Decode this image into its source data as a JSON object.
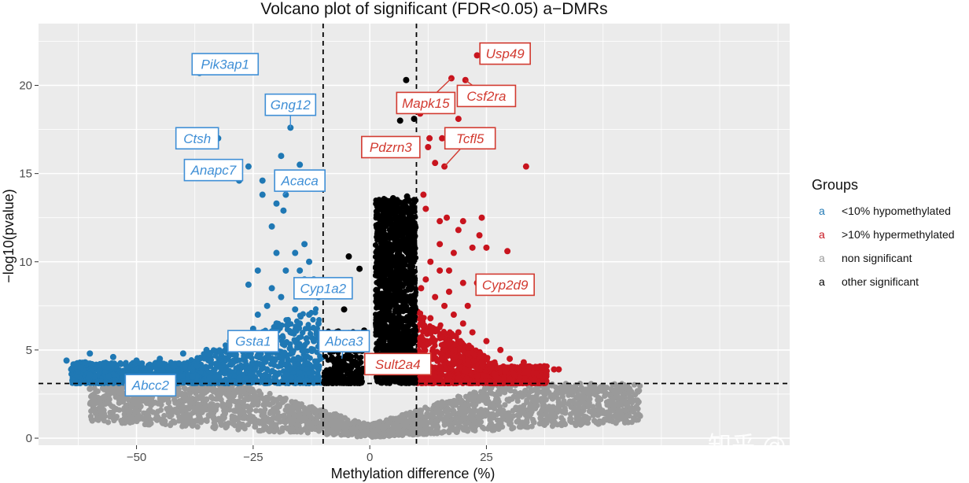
{
  "watermark": "知乎 @易基因科技",
  "chart_data": {
    "type": "scatter",
    "title": "Volcano plot of significant (FDR<0.05) a−DMRs",
    "xlabel": "Methylation difference (%)",
    "ylabel": "−log10(pvalue)",
    "xlim": [
      -71,
      90
    ],
    "ylim": [
      -0.4,
      23.5
    ],
    "x_ticks": [
      -50,
      -25,
      0,
      25
    ],
    "x_tick_labels": [
      "−50",
      "−25",
      "0",
      "25"
    ],
    "y_ticks": [
      0,
      5,
      10,
      15,
      20
    ],
    "y_tick_labels": [
      "0",
      "5",
      "10",
      "15",
      "20"
    ],
    "thresholds": {
      "x": [
        -10,
        10
      ],
      "y": 3.1
    },
    "grid": true,
    "legend": {
      "title": "Groups",
      "placement": "right",
      "entries": [
        {
          "key": "a",
          "label": "<10% hypomethylated",
          "color": "#1f78b4"
        },
        {
          "key": "a",
          "label": ">10% hypermethylated",
          "color": "#c8141e"
        },
        {
          "key": "a",
          "label": "non significant",
          "color": "#9a9a9a"
        },
        {
          "key": "a",
          "label": "other significant",
          "color": "#000000"
        }
      ]
    },
    "colors": {
      "hypo": "#1f78b4",
      "hyper": "#c8141e",
      "ns": "#9a9a9a",
      "other": "#000000",
      "panel": "#ebebeb"
    },
    "series": [
      {
        "name": "non significant",
        "color": "#9a9a9a",
        "points": [
          [
            -60,
            2.8
          ],
          [
            -52,
            3.0
          ],
          [
            -45,
            2.7
          ],
          [
            -40,
            2.4
          ],
          [
            -35,
            2.2
          ],
          [
            -30,
            2.5
          ],
          [
            -25,
            1.9
          ],
          [
            -20,
            1.7
          ],
          [
            -15,
            1.4
          ],
          [
            -10,
            1.0
          ],
          [
            -5,
            0.6
          ],
          [
            0,
            0.2
          ],
          [
            5,
            0.6
          ],
          [
            10,
            1.0
          ],
          [
            15,
            1.3
          ],
          [
            20,
            1.6
          ],
          [
            25,
            2.0
          ],
          [
            30,
            2.2
          ],
          [
            35,
            2.3
          ],
          [
            45,
            1.0
          ],
          [
            49,
            1.9
          ],
          [
            53,
            2.4
          ],
          [
            47,
            2.0
          ],
          [
            40,
            2.6
          ],
          [
            55,
            2.9
          ],
          [
            54,
            2.8
          ],
          [
            43,
            1.1
          ]
        ]
      },
      {
        "name": "other significant",
        "color": "#000000",
        "points": [
          [
            2,
            13.5
          ],
          [
            5,
            13.6
          ],
          [
            8,
            13.7
          ],
          [
            9.5,
            13.5
          ],
          [
            7.8,
            20.3
          ],
          [
            6.5,
            18.0
          ],
          [
            9.5,
            18.1
          ],
          [
            9.0,
            16.1
          ],
          [
            -4.5,
            10.3
          ],
          [
            -2.2,
            9.6
          ],
          [
            -1.2,
            6.1
          ],
          [
            -5.5,
            7.3
          ],
          [
            -8,
            4.5
          ],
          [
            -4,
            4.0
          ],
          [
            1.5,
            4.5
          ],
          [
            3,
            6.5
          ],
          [
            6,
            9.5
          ],
          [
            8,
            8.0
          ]
        ]
      },
      {
        "name": "<10% hypomethylated",
        "color": "#1f78b4",
        "points": [
          [
            -36.5,
            20.7
          ],
          [
            -32.5,
            17.0
          ],
          [
            -28,
            14.6
          ],
          [
            -26,
            15.4
          ],
          [
            -23,
            14.6
          ],
          [
            -23,
            13.8
          ],
          [
            -19,
            16.0
          ],
          [
            -15,
            15.5
          ],
          [
            -18,
            13.8
          ],
          [
            -18.5,
            12.9
          ],
          [
            -17,
            17.6
          ],
          [
            -20,
            13.3
          ],
          [
            -21,
            12.0
          ],
          [
            -16,
            10.5
          ],
          [
            -15,
            9.5
          ],
          [
            -14,
            9.0
          ],
          [
            -14,
            8.5
          ],
          [
            -13,
            10.0
          ],
          [
            -24,
            9.5
          ],
          [
            -26,
            8.7
          ],
          [
            -22,
            7.5
          ],
          [
            -20,
            6.5
          ],
          [
            -30,
            5.5
          ],
          [
            -35,
            5.0
          ],
          [
            -40,
            4.8
          ],
          [
            -45,
            4.5
          ],
          [
            -50,
            4.4
          ],
          [
            -55,
            4.6
          ],
          [
            -60,
            4.8
          ],
          [
            -65,
            4.4
          ],
          [
            -63,
            4.2
          ],
          [
            -62,
            4.0
          ],
          [
            -58,
            3.8
          ],
          [
            -53,
            3.7
          ],
          [
            -48,
            3.7
          ],
          [
            -43,
            3.6
          ],
          [
            -38,
            3.5
          ],
          [
            -33,
            3.5
          ],
          [
            -28,
            3.4
          ],
          [
            -23,
            3.5
          ],
          [
            -18,
            3.6
          ],
          [
            -13,
            3.7
          ],
          [
            -11,
            3.9
          ],
          [
            -15,
            4.5
          ],
          [
            -12,
            5.5
          ],
          [
            -11,
            6.5
          ],
          [
            -13,
            7.0
          ],
          [
            -17,
            6.0
          ],
          [
            -22,
            5.5
          ],
          [
            -27,
            4.5
          ],
          [
            -32,
            4.0
          ],
          [
            -37,
            4.1
          ],
          [
            -42,
            4.1
          ],
          [
            -47,
            3.9
          ],
          [
            -52,
            4.0
          ],
          [
            -57,
            4.1
          ],
          [
            -61,
            4.3
          ],
          [
            -64,
            3.9
          ],
          [
            -60,
            3.6
          ],
          [
            -56,
            3.5
          ],
          [
            -45,
            4.2
          ],
          [
            -25,
            6.2
          ],
          [
            -19,
            8.0
          ],
          [
            -16,
            7.3
          ],
          [
            -14,
            11.0
          ],
          [
            -20,
            10.5
          ],
          [
            -24,
            7.0
          ],
          [
            -21,
            8.5
          ],
          [
            -18,
            9.5
          ],
          [
            -12,
            9.0
          ],
          [
            -11,
            8.0
          ],
          [
            -15,
            6.5
          ]
        ]
      },
      {
        "name": ">10% hypermethylated",
        "color": "#c8141e",
        "points": [
          [
            23,
            21.7
          ],
          [
            20.5,
            20.3
          ],
          [
            17.5,
            20.4
          ],
          [
            19,
            18.1
          ],
          [
            10.8,
            18.4
          ],
          [
            12.8,
            17.0
          ],
          [
            12.5,
            16.5
          ],
          [
            15.5,
            17.0
          ],
          [
            14,
            15.6
          ],
          [
            16,
            15.4
          ],
          [
            33.5,
            15.4
          ],
          [
            11.5,
            13.8
          ],
          [
            12,
            13.0
          ],
          [
            15,
            12.3
          ],
          [
            16.5,
            12.5
          ],
          [
            19,
            11.8
          ],
          [
            20,
            12.3
          ],
          [
            24,
            12.5
          ],
          [
            23.5,
            11.5
          ],
          [
            22,
            10.8
          ],
          [
            25,
            10.8
          ],
          [
            29.5,
            10.6
          ],
          [
            18,
            10.5
          ],
          [
            13,
            10.0
          ],
          [
            15,
            9.5
          ],
          [
            17,
            9.5
          ],
          [
            20,
            8.8
          ],
          [
            12,
            9.0
          ],
          [
            11,
            8.5
          ],
          [
            14,
            8.0
          ],
          [
            16,
            7.5
          ],
          [
            18,
            7.0
          ],
          [
            20,
            6.5
          ],
          [
            22,
            6.0
          ],
          [
            25,
            5.5
          ],
          [
            28,
            5.0
          ],
          [
            30,
            4.5
          ],
          [
            33,
            4.3
          ],
          [
            37,
            4.0
          ],
          [
            39.5,
            3.9
          ],
          [
            40.5,
            3.9
          ],
          [
            35,
            3.7
          ],
          [
            31,
            3.6
          ],
          [
            27,
            3.5
          ],
          [
            23,
            3.5
          ],
          [
            19,
            3.4
          ],
          [
            15,
            3.4
          ],
          [
            11,
            3.5
          ],
          [
            12,
            4.5
          ],
          [
            13,
            5.5
          ],
          [
            11,
            6.5
          ],
          [
            14,
            4.0
          ],
          [
            16,
            5.0
          ],
          [
            18,
            4.2
          ],
          [
            21,
            4.8
          ],
          [
            24,
            4.3
          ],
          [
            26,
            4.0
          ],
          [
            29,
            3.8
          ],
          [
            32,
            3.9
          ],
          [
            34,
            3.8
          ],
          [
            23,
            8.8
          ],
          [
            19,
            6.0
          ],
          [
            17,
            8.3
          ],
          [
            13,
            6.8
          ],
          [
            15,
            11.0
          ],
          [
            21,
            7.5
          ]
        ]
      }
    ],
    "annotations": [
      {
        "gene": "Pik3ap1",
        "group": "hypo",
        "x": -36.5,
        "y": 20.7,
        "lx": -31,
        "ly": 21.2
      },
      {
        "gene": "Gng12",
        "group": "hypo",
        "x": -17,
        "y": 17.6,
        "lx": -17,
        "ly": 18.9
      },
      {
        "gene": "Ctsh",
        "group": "hypo",
        "x": -32.5,
        "y": 17.0,
        "lx": -37,
        "ly": 17.0
      },
      {
        "gene": "Anapc7",
        "group": "hypo",
        "x": -28,
        "y": 14.6,
        "lx": -33.5,
        "ly": 15.2
      },
      {
        "gene": "Acaca",
        "group": "hypo",
        "x": -18.5,
        "y": 13.8,
        "lx": -15,
        "ly": 14.6
      },
      {
        "gene": "Cyp1a2",
        "group": "hypo",
        "x": -8.5,
        "y": 8.3,
        "lx": -10,
        "ly": 8.5
      },
      {
        "gene": "Gsta1",
        "group": "hypo",
        "x": -25,
        "y": 4.9,
        "lx": -25,
        "ly": 5.5
      },
      {
        "gene": "Abca3",
        "group": "hypo",
        "x": -6,
        "y": 4.5,
        "lx": -5.5,
        "ly": 5.5
      },
      {
        "gene": "Abcc2",
        "group": "hypo",
        "x": -43,
        "y": 3.5,
        "lx": -47,
        "ly": 3.0
      },
      {
        "gene": "Usp49",
        "group": "hyper",
        "x": 23,
        "y": 21.7,
        "lx": 29,
        "ly": 21.8
      },
      {
        "gene": "Mapk15",
        "group": "hyper",
        "x": 17.5,
        "y": 20.4,
        "lx": 12,
        "ly": 19.0
      },
      {
        "gene": "Csf2ra",
        "group": "hyper",
        "x": 20.5,
        "y": 20.3,
        "lx": 25,
        "ly": 19.4
      },
      {
        "gene": "Pdzrn3",
        "group": "hyper",
        "x": 9.0,
        "y": 16.1,
        "lx": 4.5,
        "ly": 16.5
      },
      {
        "gene": "Tcfl5",
        "group": "hyper",
        "x": 16,
        "y": 15.4,
        "lx": 21.5,
        "ly": 17.0
      },
      {
        "gene": "Cyp2d9",
        "group": "hyper",
        "x": 23.5,
        "y": 8.8,
        "lx": 29,
        "ly": 8.7
      },
      {
        "gene": "Sult2a4",
        "group": "hyper",
        "x": 7.5,
        "y": 4.0,
        "lx": 6,
        "ly": 4.2
      }
    ]
  }
}
